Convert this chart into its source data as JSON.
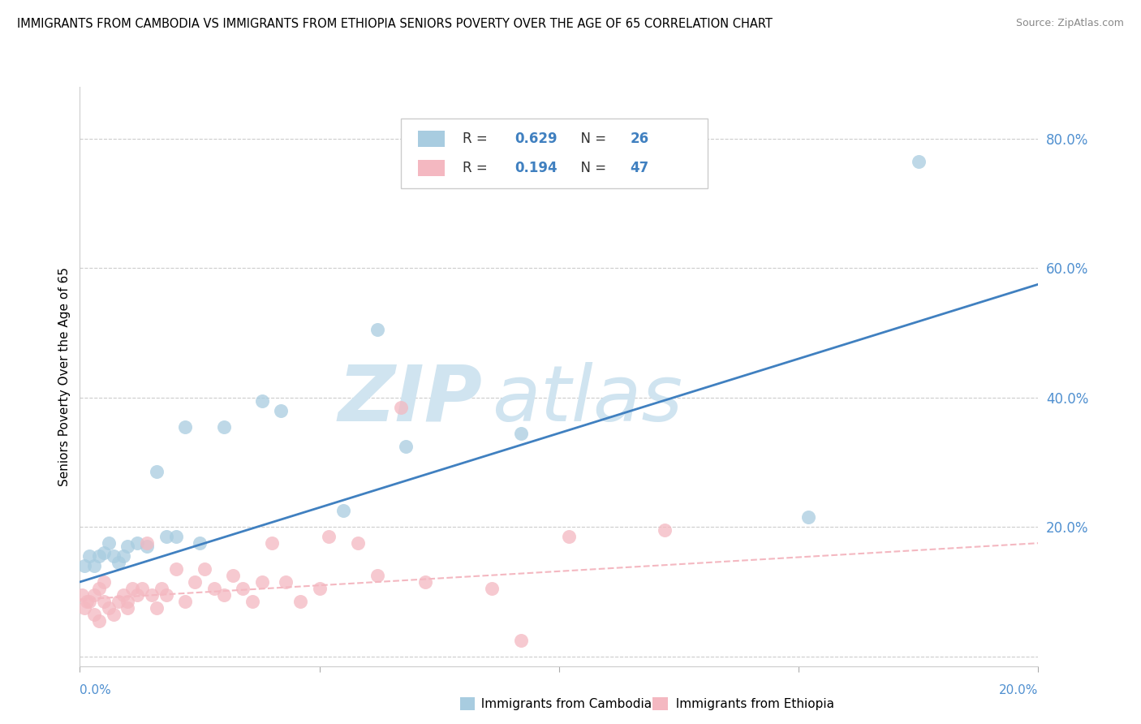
{
  "title": "IMMIGRANTS FROM CAMBODIA VS IMMIGRANTS FROM ETHIOPIA SENIORS POVERTY OVER THE AGE OF 65 CORRELATION CHART",
  "source": "Source: ZipAtlas.com",
  "ylabel": "Seniors Poverty Over the Age of 65",
  "yticks": [
    0.0,
    0.2,
    0.4,
    0.6,
    0.8
  ],
  "ytick_labels": [
    "",
    "20.0%",
    "40.0%",
    "60.0%",
    "80.0%"
  ],
  "xtick_labels": [
    "0.0%",
    "",
    "",
    "",
    "20.0%"
  ],
  "xlim": [
    0.0,
    0.2
  ],
  "ylim": [
    -0.015,
    0.88
  ],
  "label_cambodia": "Immigrants from Cambodia",
  "label_ethiopia": "Immigrants from Ethiopia",
  "color_cambodia": "#a8cce0",
  "color_ethiopia": "#f4b8c1",
  "color_line_cambodia": "#4080c0",
  "color_line_ethiopia": "#e87090",
  "color_ytick": "#5090d0",
  "color_xtick": "#5090d0",
  "watermark_color": "#d0e4f0",
  "legend_r_val_cambodia": "0.629",
  "legend_n_val_cambodia": "26",
  "legend_r_val_ethiopia": "0.194",
  "legend_n_val_ethiopia": "47",
  "camb_line_x0": 0.0,
  "camb_line_y0": 0.115,
  "camb_line_x1": 0.2,
  "camb_line_y1": 0.575,
  "eth_line_x0": 0.0,
  "eth_line_y0": 0.088,
  "eth_line_x1": 0.2,
  "eth_line_y1": 0.175,
  "cambodia_x": [
    0.001,
    0.002,
    0.003,
    0.004,
    0.005,
    0.006,
    0.007,
    0.008,
    0.009,
    0.01,
    0.012,
    0.014,
    0.016,
    0.018,
    0.02,
    0.022,
    0.025,
    0.03,
    0.038,
    0.042,
    0.055,
    0.062,
    0.068,
    0.092,
    0.152,
    0.175
  ],
  "cambodia_y": [
    0.14,
    0.155,
    0.14,
    0.155,
    0.16,
    0.175,
    0.155,
    0.145,
    0.155,
    0.17,
    0.175,
    0.17,
    0.285,
    0.185,
    0.185,
    0.355,
    0.175,
    0.355,
    0.395,
    0.38,
    0.225,
    0.505,
    0.325,
    0.345,
    0.215,
    0.765
  ],
  "ethiopia_x": [
    0.0005,
    0.001,
    0.0015,
    0.002,
    0.003,
    0.003,
    0.004,
    0.004,
    0.005,
    0.005,
    0.006,
    0.007,
    0.008,
    0.009,
    0.01,
    0.01,
    0.011,
    0.012,
    0.013,
    0.014,
    0.015,
    0.016,
    0.017,
    0.018,
    0.02,
    0.022,
    0.024,
    0.026,
    0.028,
    0.03,
    0.032,
    0.034,
    0.036,
    0.038,
    0.04,
    0.043,
    0.046,
    0.05,
    0.052,
    0.058,
    0.062,
    0.067,
    0.072,
    0.086,
    0.092,
    0.102,
    0.122
  ],
  "ethiopia_y": [
    0.095,
    0.075,
    0.085,
    0.085,
    0.065,
    0.095,
    0.055,
    0.105,
    0.085,
    0.115,
    0.075,
    0.065,
    0.085,
    0.095,
    0.075,
    0.085,
    0.105,
    0.095,
    0.105,
    0.175,
    0.095,
    0.075,
    0.105,
    0.095,
    0.135,
    0.085,
    0.115,
    0.135,
    0.105,
    0.095,
    0.125,
    0.105,
    0.085,
    0.115,
    0.175,
    0.115,
    0.085,
    0.105,
    0.185,
    0.175,
    0.125,
    0.385,
    0.115,
    0.105,
    0.025,
    0.185,
    0.195
  ]
}
